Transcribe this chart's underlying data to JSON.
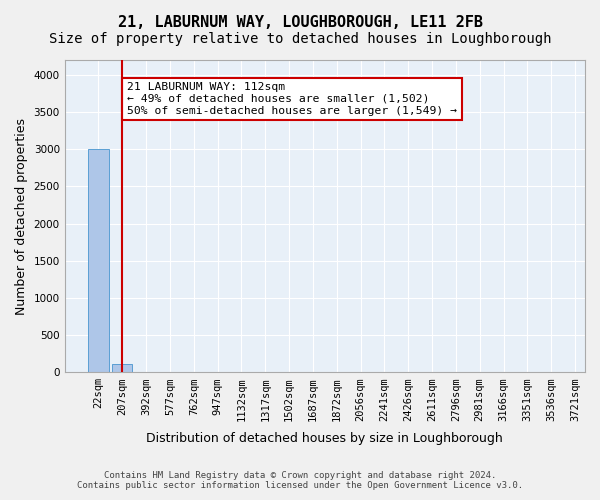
{
  "title_line1": "21, LABURNUM WAY, LOUGHBOROUGH, LE11 2FB",
  "title_line2": "Size of property relative to detached houses in Loughborough",
  "xlabel": "Distribution of detached houses by size in Loughborough",
  "ylabel": "Number of detached properties",
  "footer_line1": "Contains HM Land Registry data © Crown copyright and database right 2024.",
  "footer_line2": "Contains public sector information licensed under the Open Government Licence v3.0.",
  "annotation_line1": "21 LABURNUM WAY: 112sqm",
  "annotation_line2": "← 49% of detached houses are smaller (1,502)",
  "annotation_line3": "50% of semi-detached houses are larger (1,549) →",
  "bin_labels": [
    "22sqm",
    "207sqm",
    "392sqm",
    "577sqm",
    "762sqm",
    "947sqm",
    "1132sqm",
    "1317sqm",
    "1502sqm",
    "1687sqm",
    "1872sqm",
    "2056sqm",
    "2241sqm",
    "2426sqm",
    "2611sqm",
    "2796sqm",
    "2981sqm",
    "3166sqm",
    "3351sqm",
    "3536sqm",
    "3721sqm"
  ],
  "bar_values": [
    3000,
    110,
    0,
    0,
    0,
    0,
    0,
    0,
    0,
    0,
    0,
    0,
    0,
    0,
    0,
    0,
    0,
    0,
    0,
    0
  ],
  "bar_color": "#aec6e8",
  "bar_edge_color": "#5a9fd4",
  "redline_x": 0.52,
  "ylim": [
    0,
    4200
  ],
  "yticks": [
    0,
    500,
    1000,
    1500,
    2000,
    2500,
    3000,
    3500,
    4000
  ],
  "background_color": "#e8f0f8",
  "plot_bg_color": "#e8f0f8",
  "grid_color": "#ffffff",
  "red_color": "#cc0000",
  "title_fontsize": 11,
  "subtitle_fontsize": 10,
  "label_fontsize": 9,
  "tick_fontsize": 7.5
}
